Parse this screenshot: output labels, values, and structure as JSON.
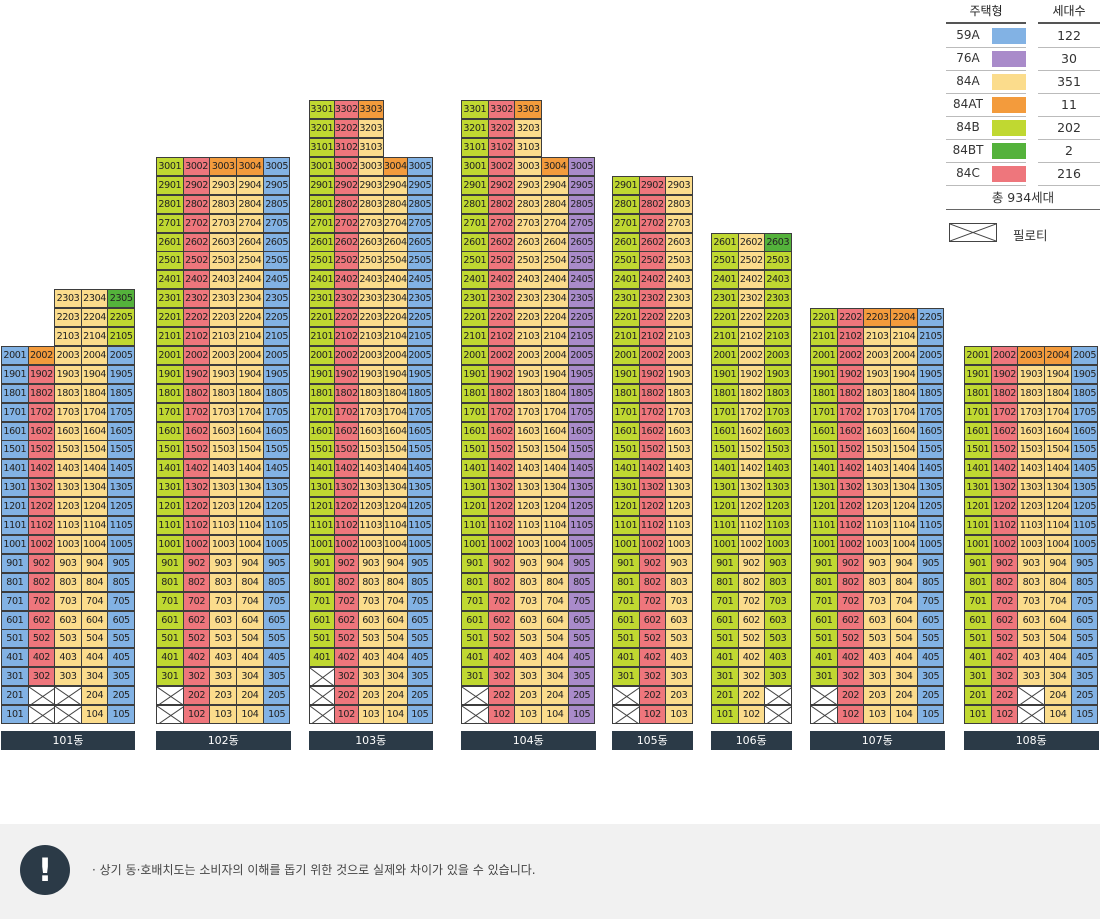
{
  "chart_data": {
    "type": "table",
    "title": "",
    "legend": {
      "type_header": "주택형",
      "count_header": "세대수",
      "items": [
        {
          "type": "59A",
          "color": "#82b2e4",
          "count": "122"
        },
        {
          "type": "76A",
          "color": "#a98bca",
          "count": "30"
        },
        {
          "type": "84A",
          "color": "#fbdc8c",
          "count": "351"
        },
        {
          "type": "84AT",
          "color": "#f39b3c",
          "count": "11"
        },
        {
          "type": "84B",
          "color": "#c0d831",
          "count": "202"
        },
        {
          "type": "84BT",
          "color": "#54b23b",
          "count": "2"
        },
        {
          "type": "84C",
          "color": "#ee767c",
          "count": "216"
        }
      ],
      "total": "총 934세대",
      "piloti_label": "필로티"
    },
    "buildings": [
      {
        "name": "101동",
        "default_types": [
          "59A",
          "84C",
          "84A",
          "84A",
          "59A"
        ],
        "blocks": [
          {
            "floors": [
              20,
              20
            ],
            "types": [
              "59A",
              "84AT",
              "84A",
              "84A",
              "59A"
            ]
          },
          {
            "floors": [
              21,
              23
            ],
            "cols": [
              3,
              4,
              5
            ],
            "types": [
              "84A",
              "84A",
              "84BT"
            ]
          }
        ],
        "overrides": {
          "2305": "84BT",
          "2205": "84B",
          "2105": "84B",
          "2304": "84A"
        },
        "piloti": [
          "102",
          "103",
          "202",
          "203"
        ],
        "start_col": 1
      },
      {
        "name": "102동",
        "default_types": [
          "84B",
          "84C",
          "84A",
          "84A",
          "59A"
        ],
        "top_floor": 30,
        "piloti": [
          "101",
          "201"
        ],
        "overrides": {
          "3003": "84AT",
          "3004": "84AT",
          "3005": "59A"
        }
      },
      {
        "name": "103동",
        "default_types": [
          "84B",
          "84C",
          "84A",
          "84A",
          "59A"
        ],
        "top_floor": 30,
        "tower_top": 33,
        "piloti": [
          "101",
          "201",
          "301"
        ],
        "overrides": {
          "3004": "84AT",
          "3303": "84AT",
          "3005": "59A"
        }
      },
      {
        "name": "104동",
        "default_types": [
          "84B",
          "84C",
          "84A",
          "84A",
          "76A"
        ],
        "top_floor": 30,
        "tower_top": 33,
        "piloti": [
          "101",
          "201"
        ],
        "overrides": {
          "3004": "84AT",
          "3303": "84AT",
          "3005": "76A"
        }
      },
      {
        "name": "105동",
        "default_types": [
          "84B",
          "84C",
          "84A"
        ],
        "top_floor": 29,
        "piloti": [
          "101",
          "201"
        ]
      },
      {
        "name": "106동",
        "default_types": [
          "84B",
          "84A",
          "84B"
        ],
        "top_floor": 26,
        "piloti": [
          "103",
          "203"
        ],
        "overrides": {
          "2603": "84BT"
        }
      },
      {
        "name": "107동",
        "default_types": [
          "84B",
          "84C",
          "84A",
          "84A",
          "59A"
        ],
        "top_floor": 22,
        "piloti": [
          "101",
          "201"
        ],
        "overrides": {
          "2203": "84AT",
          "2204": "84AT"
        }
      },
      {
        "name": "108동",
        "default_types": [
          "84B",
          "84C",
          "84A",
          "84A",
          "59A"
        ],
        "top_floor": 20,
        "piloti": [
          "103",
          "203"
        ],
        "overrides": {
          "2003": "84AT",
          "2004": "84AT"
        }
      }
    ]
  },
  "notice": {
    "icon": "!",
    "text": "· 상기 동·호배치도는 소비자의 이해를 돕기 위한 것으로 실제와 차이가 있을 수 있습니다."
  }
}
